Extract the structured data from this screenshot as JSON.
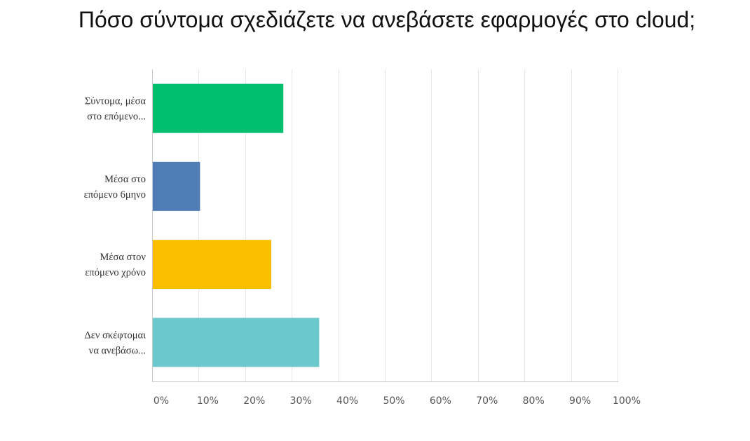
{
  "chart_data": {
    "type": "bar",
    "orientation": "horizontal",
    "title": "Πόσο σύντομα σχεδιάζετε να ανεβάσετε εφαρμογές στο cloud;",
    "categories": [
      [
        "Σύντομα, μέσα",
        "στο επόμενο..."
      ],
      [
        "Μέσα στο",
        "επόμενο 6μηνο"
      ],
      [
        "Μέσα στον",
        "επόμενο χρόνο"
      ],
      [
        "Δεν σκέφτομαι",
        "να ανεβάσω..."
      ]
    ],
    "values": [
      28.2,
      10.3,
      25.6,
      35.9
    ],
    "colors": [
      "#00bf6f",
      "#507cb6",
      "#f9be00",
      "#6bc8cd"
    ],
    "xlim": [
      0,
      100
    ],
    "xticks": [
      "0%",
      "10%",
      "20%",
      "30%",
      "40%",
      "50%",
      "60%",
      "70%",
      "80%",
      "90%",
      "100%"
    ],
    "xlabel": "",
    "ylabel": "",
    "grid": "vertical",
    "legend": "none"
  }
}
